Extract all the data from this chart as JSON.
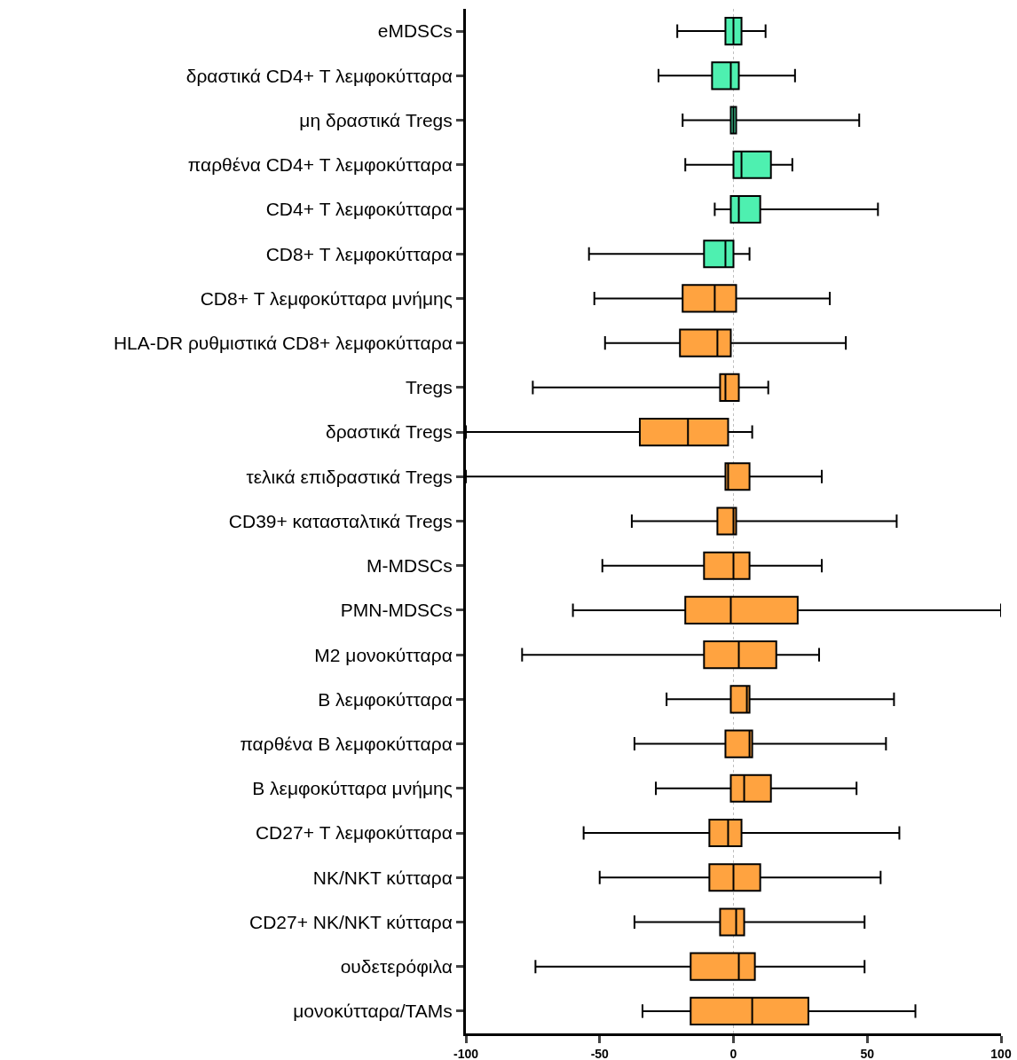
{
  "chart_data": {
    "type": "box",
    "orientation": "horizontal",
    "categories": [
      "eMDSCs",
      "δραστικά CD4+ Τ λεμφοκύτταρα",
      "μη δραστικά Tregs",
      "παρθένα CD4+ Τ λεμφοκύτταρα",
      "CD4+ Τ λεμφοκύτταρα",
      "CD8+ Τ λεμφοκύτταρα",
      "CD8+ Τ λεμφοκύτταρα μνήμης",
      "HLA-DR ρυθμιστικά CD8+ λεμφοκύτταρα",
      "Tregs",
      "δραστικά Tregs",
      "τελικά επιδραστικά Tregs",
      "CD39+ κατασταλτικά Tregs",
      "M-MDSCs",
      "PMN-MDSCs",
      "M2 μονοκύτταρα",
      "Β λεμφοκύτταρα",
      "παρθένα Β λεμφοκύτταρα",
      "Β λεμφοκύτταρα μνήμης",
      "CD27+ Τ λεμφοκύτταρα",
      "NK/NKT κύτταρα",
      "CD27+ NK/NKT κύτταρα",
      "ουδετερόφιλα",
      "μονοκύτταρα/TAMs"
    ],
    "boxes": [
      {
        "low": -21,
        "q1": -3,
        "median": 0,
        "q3": 3,
        "high": 12
      },
      {
        "low": -28,
        "q1": -8,
        "median": -1,
        "q3": 2,
        "high": 23
      },
      {
        "low": -19,
        "q1": -1,
        "median": 0,
        "q3": 1,
        "high": 47
      },
      {
        "low": -18,
        "q1": 0,
        "median": 3,
        "q3": 14,
        "high": 22
      },
      {
        "low": -7,
        "q1": -1,
        "median": 2,
        "q3": 10,
        "high": 54
      },
      {
        "low": -54,
        "q1": -11,
        "median": -3,
        "q3": 0,
        "high": 6
      },
      {
        "low": -52,
        "q1": -19,
        "median": -7,
        "q3": 1,
        "high": 36
      },
      {
        "low": -48,
        "q1": -20,
        "median": -6,
        "q3": -1,
        "high": 42
      },
      {
        "low": -75,
        "q1": -5,
        "median": -3,
        "q3": 2,
        "high": 13
      },
      {
        "low": -100,
        "q1": -35,
        "median": -17,
        "q3": -2,
        "high": 7
      },
      {
        "low": -100,
        "q1": -3,
        "median": -2,
        "q3": 6,
        "high": 33
      },
      {
        "low": -38,
        "q1": -6,
        "median": 0,
        "q3": 1,
        "high": 61
      },
      {
        "low": -49,
        "q1": -11,
        "median": 0,
        "q3": 6,
        "high": 33
      },
      {
        "low": -60,
        "q1": -18,
        "median": -1,
        "q3": 24,
        "high": 100
      },
      {
        "low": -79,
        "q1": -11,
        "median": 2,
        "q3": 16,
        "high": 32
      },
      {
        "low": -25,
        "q1": -1,
        "median": 5,
        "q3": 6,
        "high": 60
      },
      {
        "low": -37,
        "q1": -3,
        "median": 6,
        "q3": 7,
        "high": 57
      },
      {
        "low": -29,
        "q1": -1,
        "median": 4,
        "q3": 14,
        "high": 46
      },
      {
        "low": -56,
        "q1": -9,
        "median": -2,
        "q3": 3,
        "high": 62
      },
      {
        "low": -50,
        "q1": -9,
        "median": 0,
        "q3": 10,
        "high": 55
      },
      {
        "low": -37,
        "q1": -5,
        "median": 1,
        "q3": 4,
        "high": 49
      },
      {
        "low": -74,
        "q1": -16,
        "median": 2,
        "q3": 8,
        "high": 49
      },
      {
        "low": -34,
        "q1": -16,
        "median": 7,
        "q3": 28,
        "high": 68
      }
    ],
    "colors": [
      "#4ef0b0",
      "#4ef0b0",
      "#4ef0b0",
      "#4ef0b0",
      "#4ef0b0",
      "#4ef0b0",
      "#ffa340",
      "#ffa340",
      "#ffa340",
      "#ffa340",
      "#ffa340",
      "#ffa340",
      "#ffa340",
      "#ffa340",
      "#ffa340",
      "#ffa340",
      "#ffa340",
      "#ffa340",
      "#ffa340",
      "#ffa340",
      "#ffa340",
      "#ffa340",
      "#ffa340"
    ],
    "xlim": [
      -100,
      100
    ],
    "xticks": [
      -100,
      -50,
      0,
      50,
      100
    ],
    "ref_lines": [
      {
        "axis": "x",
        "value": 0,
        "color": "#c0c0c0",
        "line_style": "dotted"
      }
    ],
    "grid": false
  }
}
